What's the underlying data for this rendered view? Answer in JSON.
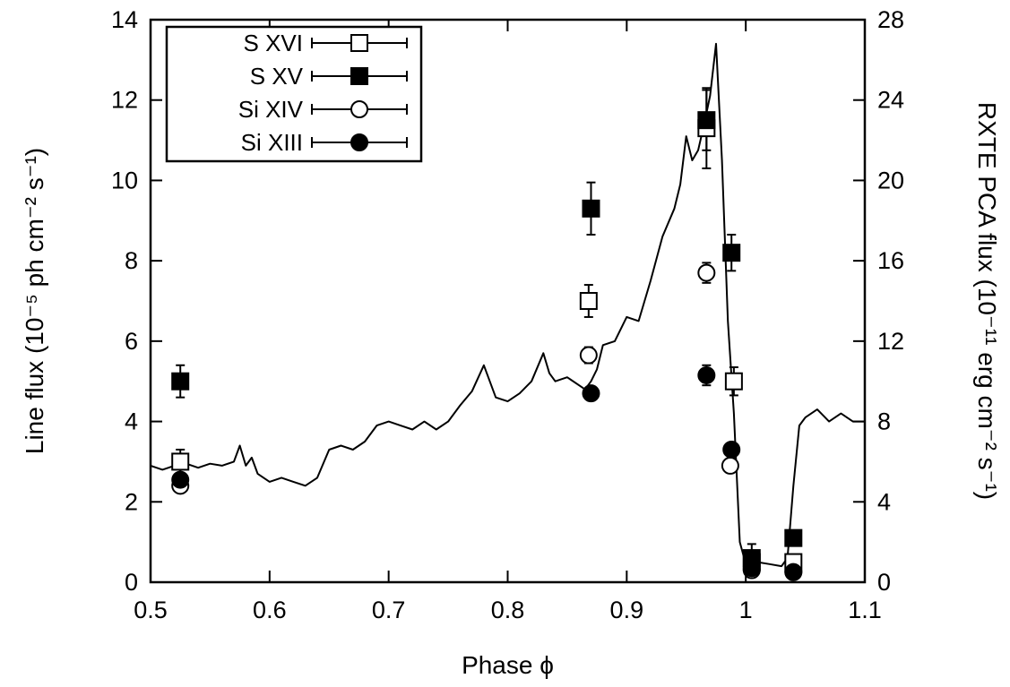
{
  "chart_data": {
    "type": "scatter",
    "xlabel": "Phase ϕ",
    "ylabel": "Line flux (10⁻⁵ ph cm⁻² s⁻¹)",
    "y2label": "RXTE PCA flux (10⁻¹¹ erg cm⁻² s⁻¹)",
    "xlim": [
      0.5,
      1.1
    ],
    "ylim": [
      0,
      14
    ],
    "y2lim": [
      0,
      28
    ],
    "x_ticks": [
      0.5,
      0.6,
      0.7,
      0.8,
      0.9,
      1,
      1.1
    ],
    "x_tick_labels": [
      "0.5",
      "0.6",
      "0.7",
      "0.8",
      "0.9",
      "1",
      "1.1"
    ],
    "y_ticks": [
      0,
      2,
      4,
      6,
      8,
      10,
      12,
      14
    ],
    "y_tick_labels": [
      "0",
      "2",
      "4",
      "6",
      "8",
      "10",
      "12",
      "14"
    ],
    "y2_ticks": [
      0,
      4,
      8,
      12,
      16,
      20,
      24,
      28
    ],
    "y2_tick_labels": [
      "0",
      "4",
      "8",
      "12",
      "16",
      "20",
      "24",
      "28"
    ],
    "grid": false,
    "legend_position": "top-left",
    "series": [
      {
        "name": "S XVI",
        "marker": "open-square",
        "x": [
          0.525,
          0.868,
          0.967,
          0.99,
          1.005,
          1.04
        ],
        "y": [
          3.0,
          7.0,
          11.3,
          5.0,
          0.5,
          0.5
        ],
        "yerr": [
          0.3,
          0.4,
          1.0,
          0.35,
          0.2,
          0.15
        ]
      },
      {
        "name": "S XV",
        "marker": "filled-square",
        "x": [
          0.525,
          0.87,
          0.967,
          0.988,
          1.005,
          1.04
        ],
        "y": [
          5.0,
          9.3,
          11.5,
          8.2,
          0.6,
          1.1
        ],
        "yerr": [
          0.4,
          0.65,
          0.75,
          0.45,
          0.35,
          0.1
        ]
      },
      {
        "name": "Si XIV",
        "marker": "open-circle",
        "x": [
          0.525,
          0.868,
          0.967,
          0.987,
          1.005,
          1.04
        ],
        "y": [
          2.4,
          5.65,
          7.7,
          2.9,
          0.3,
          0.25
        ],
        "yerr": [
          0.12,
          0.2,
          0.25,
          0.1,
          0.1,
          0.05
        ]
      },
      {
        "name": "Si XIII",
        "marker": "filled-circle",
        "x": [
          0.525,
          0.87,
          0.967,
          0.988,
          1.005,
          1.04
        ],
        "y": [
          2.55,
          4.7,
          5.15,
          3.3,
          0.35,
          0.25
        ],
        "yerr": [
          0.12,
          0.15,
          0.25,
          0.12,
          0.1,
          0.05
        ]
      }
    ],
    "rxte_curve": {
      "axis": "right",
      "x": [
        0.5,
        0.51,
        0.52,
        0.53,
        0.54,
        0.55,
        0.56,
        0.57,
        0.575,
        0.58,
        0.585,
        0.59,
        0.6,
        0.61,
        0.62,
        0.63,
        0.64,
        0.65,
        0.66,
        0.67,
        0.68,
        0.69,
        0.7,
        0.71,
        0.72,
        0.73,
        0.74,
        0.75,
        0.76,
        0.77,
        0.78,
        0.79,
        0.8,
        0.81,
        0.82,
        0.83,
        0.835,
        0.84,
        0.85,
        0.86,
        0.865,
        0.87,
        0.875,
        0.88,
        0.89,
        0.9,
        0.91,
        0.92,
        0.93,
        0.94,
        0.945,
        0.95,
        0.955,
        0.96,
        0.965,
        0.97,
        0.975,
        0.98,
        0.985,
        0.99,
        0.995,
        1.0,
        1.01,
        1.02,
        1.03,
        1.035,
        1.04,
        1.045,
        1.05,
        1.06,
        1.07,
        1.08,
        1.09,
        1.1
      ],
      "y": [
        5.8,
        5.6,
        5.8,
        5.9,
        5.7,
        5.9,
        5.8,
        6.0,
        6.8,
        5.8,
        6.2,
        5.4,
        5.0,
        5.2,
        5.0,
        4.8,
        5.2,
        6.6,
        6.8,
        6.6,
        7.0,
        7.8,
        8.0,
        7.8,
        7.6,
        8.0,
        7.6,
        8.0,
        8.8,
        9.5,
        10.8,
        9.2,
        9.0,
        9.4,
        10.0,
        11.4,
        10.4,
        10.0,
        10.2,
        9.8,
        9.6,
        10.0,
        10.6,
        11.8,
        12.0,
        13.2,
        13.0,
        15.0,
        17.2,
        18.6,
        19.8,
        22.2,
        21.0,
        21.5,
        22.8,
        24.2,
        26.8,
        21.0,
        13.0,
        8.4,
        2.0,
        0.9,
        1.0,
        0.9,
        0.8,
        1.2,
        4.8,
        7.8,
        8.2,
        8.6,
        8.0,
        8.4,
        8.0,
        8.0
      ]
    }
  }
}
